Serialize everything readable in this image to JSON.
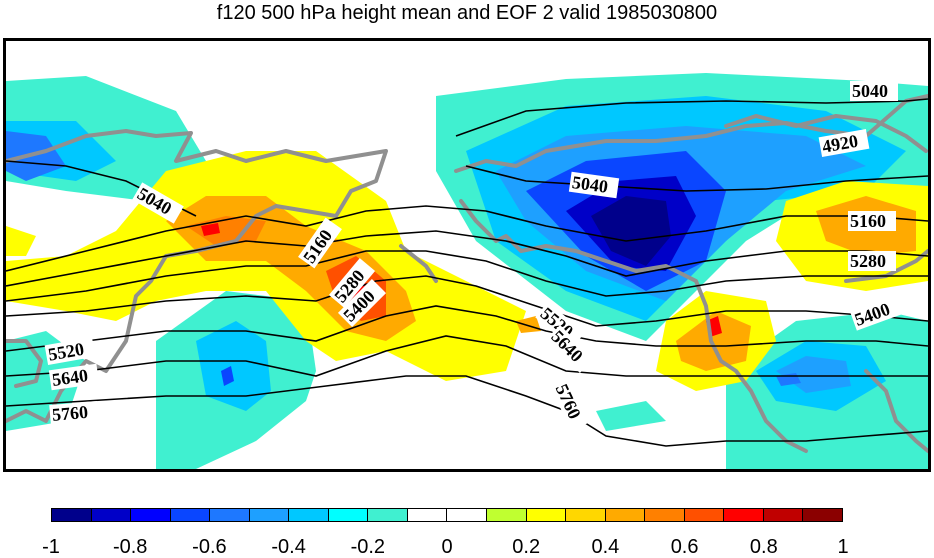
{
  "title": "f120 500 hPa height mean and EOF 2 valid 1985030800",
  "colors": {
    "coast": "#909090",
    "contour": "#000000",
    "scale": [
      "#00008b",
      "#0000c8",
      "#0000ff",
      "#0a46ff",
      "#1e78ff",
      "#1ea0ff",
      "#00c8ff",
      "#00ffff",
      "#40f0d0",
      "#ffffff",
      "#ffffff",
      "#c0ff30",
      "#ffff00",
      "#ffd700",
      "#ffaa00",
      "#ff8000",
      "#ff5000",
      "#ff0000",
      "#c00000",
      "#8b0000"
    ]
  },
  "colorbar": {
    "ticks": [
      "-1",
      "-0.8",
      "-0.6",
      "-0.4",
      "-0.2",
      "0",
      "0.2",
      "0.4",
      "0.6",
      "0.8",
      "1"
    ]
  },
  "contour_labels": [
    {
      "text": "5040"
    },
    {
      "text": "4920"
    },
    {
      "text": "5040"
    },
    {
      "text": "5040"
    },
    {
      "text": "5160"
    },
    {
      "text": "5160"
    },
    {
      "text": "5280"
    },
    {
      "text": "5280"
    },
    {
      "text": "5400"
    },
    {
      "text": "5400"
    },
    {
      "text": "5520"
    },
    {
      "text": "5640"
    },
    {
      "text": "5760"
    },
    {
      "text": "5520"
    },
    {
      "text": "5640"
    },
    {
      "text": "5760"
    }
  ]
}
